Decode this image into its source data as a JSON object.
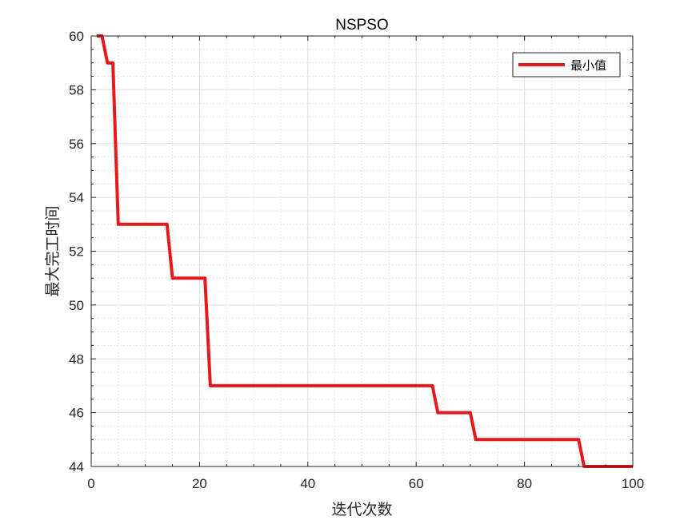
{
  "chart_data": {
    "type": "line",
    "title": "NSPSO",
    "xlabel": "迭代次数",
    "ylabel": "最大完工时间",
    "xlim": [
      0,
      100
    ],
    "ylim": [
      44,
      60
    ],
    "xticks": [
      0,
      20,
      40,
      60,
      80,
      100
    ],
    "yticks": [
      44,
      46,
      48,
      50,
      52,
      54,
      56,
      58,
      60
    ],
    "xtick_labels": [
      "0",
      "20",
      "40",
      "60",
      "80",
      "100"
    ],
    "ytick_labels": [
      "44",
      "46",
      "48",
      "50",
      "52",
      "54",
      "56",
      "58",
      "60"
    ],
    "grid": true,
    "minor_grid": true,
    "legend_position": "top-right",
    "series": [
      {
        "name": "最小值",
        "color": "#e41a1a",
        "step": true,
        "x": [
          1,
          2,
          3,
          4,
          5,
          14,
          15,
          21,
          22,
          63,
          64,
          70,
          71,
          90,
          91,
          100
        ],
        "y": [
          60,
          60,
          59,
          59,
          53,
          53,
          51,
          51,
          47,
          47,
          46,
          46,
          45,
          45,
          44,
          44
        ]
      }
    ]
  }
}
